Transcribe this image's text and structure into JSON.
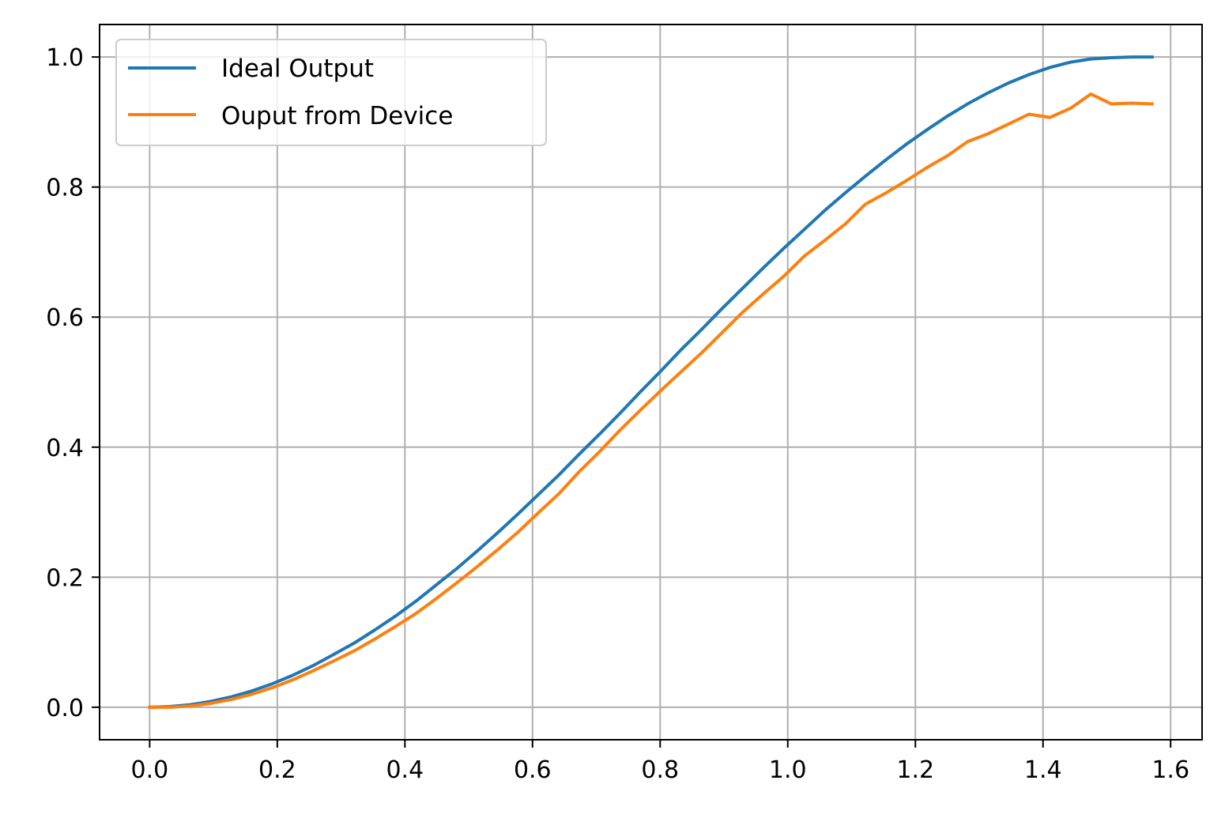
{
  "chart_data": {
    "type": "line",
    "title": "",
    "xlabel": "",
    "ylabel": "",
    "xlim": [
      -0.0785,
      1.6493
    ],
    "ylim": [
      -0.05,
      1.05
    ],
    "grid": true,
    "legend_position": "top-left",
    "x_ticks": [
      "0.0",
      "0.2",
      "0.4",
      "0.6",
      "0.8",
      "1.0",
      "1.2",
      "1.4",
      "1.6"
    ],
    "y_ticks": [
      "0.0",
      "0.2",
      "0.4",
      "0.6",
      "0.8",
      "1.0"
    ],
    "series": [
      {
        "name": "Ideal Output",
        "color": "#1f77b4",
        "x": [
          0.0,
          0.032,
          0.064,
          0.096,
          0.128,
          0.16,
          0.192,
          0.224,
          0.256,
          0.288,
          0.321,
          0.353,
          0.385,
          0.417,
          0.449,
          0.481,
          0.513,
          0.545,
          0.577,
          0.609,
          0.641,
          0.673,
          0.705,
          0.737,
          0.769,
          0.801,
          0.833,
          0.866,
          0.898,
          0.93,
          0.962,
          0.994,
          1.026,
          1.058,
          1.09,
          1.122,
          1.154,
          1.186,
          1.218,
          1.25,
          1.282,
          1.314,
          1.346,
          1.378,
          1.411,
          1.443,
          1.475,
          1.507,
          1.539,
          1.571
        ],
        "y": [
          0.0,
          0.001,
          0.004,
          0.009,
          0.016,
          0.025,
          0.036,
          0.049,
          0.064,
          0.081,
          0.099,
          0.119,
          0.14,
          0.163,
          0.188,
          0.213,
          0.24,
          0.268,
          0.297,
          0.327,
          0.357,
          0.389,
          0.42,
          0.452,
          0.485,
          0.517,
          0.55,
          0.582,
          0.614,
          0.645,
          0.676,
          0.706,
          0.735,
          0.764,
          0.791,
          0.817,
          0.842,
          0.866,
          0.888,
          0.909,
          0.928,
          0.945,
          0.96,
          0.973,
          0.984,
          0.992,
          0.997,
          0.999,
          1.0,
          1.0
        ]
      },
      {
        "name": "Ouput from Device",
        "color": "#ff7f0e",
        "x": [
          0.0,
          0.032,
          0.064,
          0.096,
          0.128,
          0.16,
          0.192,
          0.224,
          0.256,
          0.288,
          0.321,
          0.353,
          0.385,
          0.417,
          0.449,
          0.481,
          0.513,
          0.545,
          0.577,
          0.609,
          0.641,
          0.673,
          0.705,
          0.737,
          0.769,
          0.801,
          0.833,
          0.866,
          0.898,
          0.93,
          0.962,
          0.994,
          1.026,
          1.058,
          1.09,
          1.122,
          1.154,
          1.186,
          1.218,
          1.25,
          1.282,
          1.314,
          1.346,
          1.378,
          1.411,
          1.443,
          1.475,
          1.507,
          1.539,
          1.571
        ],
        "y": [
          0.0,
          0.0,
          0.002,
          0.006,
          0.012,
          0.02,
          0.03,
          0.042,
          0.056,
          0.071,
          0.087,
          0.105,
          0.124,
          0.144,
          0.167,
          0.191,
          0.216,
          0.242,
          0.269,
          0.299,
          0.328,
          0.362,
          0.393,
          0.426,
          0.457,
          0.487,
          0.516,
          0.546,
          0.577,
          0.608,
          0.636,
          0.663,
          0.694,
          0.718,
          0.743,
          0.774,
          0.791,
          0.81,
          0.83,
          0.848,
          0.87,
          0.882,
          0.897,
          0.912,
          0.907,
          0.921,
          0.943,
          0.928,
          0.929,
          0.928
        ]
      }
    ]
  }
}
